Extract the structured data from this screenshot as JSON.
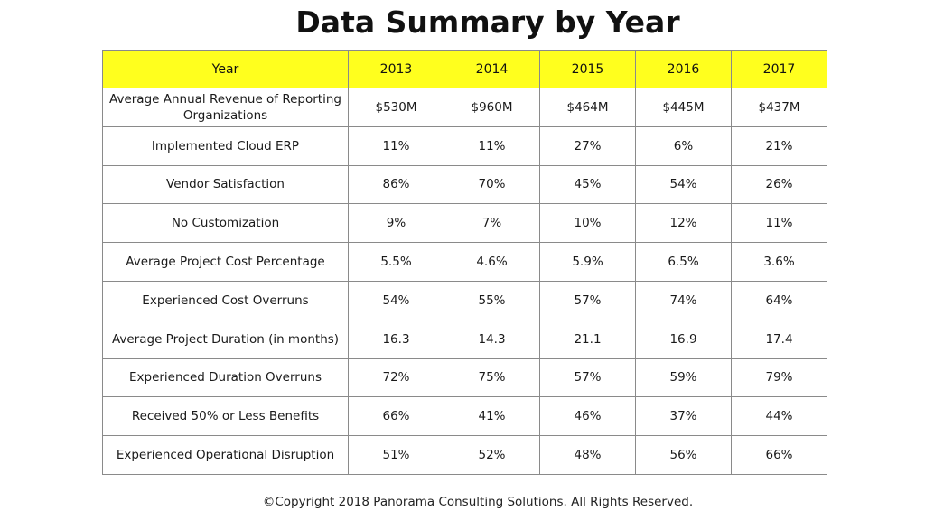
{
  "title": "Data Summary by Year",
  "copyright": "©Copyright 2018 Panorama Consulting Solutions.  All Rights Reserved.",
  "colors": {
    "header_background": "#ffff1e",
    "border": "#8a8a8a"
  },
  "chart_data": {
    "type": "table",
    "title": "Data Summary by Year",
    "header_label": "Year",
    "columns": [
      "2013",
      "2014",
      "2015",
      "2016",
      "2017"
    ],
    "rows": [
      {
        "label": "Average Annual Revenue of Reporting Organizations",
        "values": [
          "$530M",
          "$960M",
          "$464M",
          "$445M",
          "$437M"
        ]
      },
      {
        "label": "Implemented Cloud ERP",
        "values": [
          "11%",
          "11%",
          "27%",
          "6%",
          "21%"
        ]
      },
      {
        "label": "Vendor Satisfaction",
        "values": [
          "86%",
          "70%",
          "45%",
          "54%",
          "26%"
        ]
      },
      {
        "label": "No Customization",
        "values": [
          "9%",
          "7%",
          "10%",
          "12%",
          "11%"
        ]
      },
      {
        "label": "Average Project Cost Percentage",
        "values": [
          "5.5%",
          "4.6%",
          "5.9%",
          "6.5%",
          "3.6%"
        ]
      },
      {
        "label": "Experienced Cost Overruns",
        "values": [
          "54%",
          "55%",
          "57%",
          "74%",
          "64%"
        ]
      },
      {
        "label": "Average Project Duration (in months)",
        "values": [
          "16.3",
          "14.3",
          "21.1",
          "16.9",
          "17.4"
        ]
      },
      {
        "label": "Experienced Duration Overruns",
        "values": [
          "72%",
          "75%",
          "57%",
          "59%",
          "79%"
        ]
      },
      {
        "label": "Received 50% or Less Benefits",
        "values": [
          "66%",
          "41%",
          "46%",
          "37%",
          "44%"
        ]
      },
      {
        "label": "Experienced Operational Disruption",
        "values": [
          "51%",
          "52%",
          "48%",
          "56%",
          "66%"
        ]
      }
    ]
  }
}
